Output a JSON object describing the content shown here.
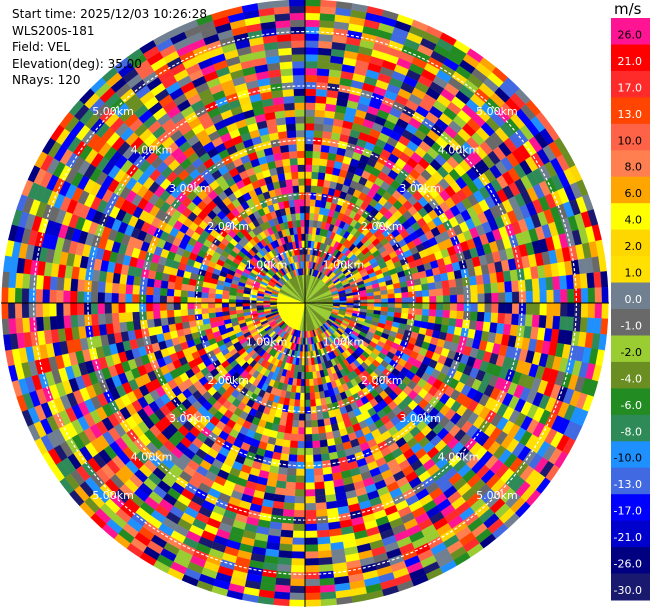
{
  "header": {
    "start_time": "Start time: 2025/12/03 10:26:28",
    "instrument": "WLS200s-181",
    "field": "Field: VEL",
    "elevation": "Elevation(deg): 35.00",
    "nrays": "NRays: 120"
  },
  "colorbar": {
    "unit": "m/s",
    "levels": [
      {
        "label": "26.0",
        "color": "#ff1493"
      },
      {
        "label": "21.0",
        "color": "#ff0000"
      },
      {
        "label": "17.0",
        "color": "#ff2b2b"
      },
      {
        "label": "13.0",
        "color": "#ff4500"
      },
      {
        "label": "10.0",
        "color": "#ff6347"
      },
      {
        "label": "8.0",
        "color": "#ff7f50"
      },
      {
        "label": "6.0",
        "color": "#ffa500"
      },
      {
        "label": "4.0",
        "color": "#ffff00"
      },
      {
        "label": "2.0",
        "color": "#ffd700"
      },
      {
        "label": "1.0",
        "color": "#ffe000"
      },
      {
        "label": "0.0",
        "color": "#708090"
      },
      {
        "label": "-1.0",
        "color": "#696969"
      },
      {
        "label": "-2.0",
        "color": "#9acd32"
      },
      {
        "label": "-4.0",
        "color": "#6b8e23"
      },
      {
        "label": "-6.0",
        "color": "#228b22"
      },
      {
        "label": "-8.0",
        "color": "#2e8b57"
      },
      {
        "label": "-10.0",
        "color": "#1e90ff"
      },
      {
        "label": "-13.0",
        "color": "#4169e1"
      },
      {
        "label": "-17.0",
        "color": "#0000ff"
      },
      {
        "label": "-21.0",
        "color": "#0000cd"
      },
      {
        "label": "-26.0",
        "color": "#000080"
      },
      {
        "label": "-30.0",
        "color": "#191970"
      }
    ]
  },
  "chart_data": {
    "type": "heatmap",
    "subtype": "polar-ppi",
    "field": "VEL",
    "unit": "m/s",
    "elevation_deg": 35.0,
    "nrays": 120,
    "range_rings": [
      {
        "label": "1.00km",
        "km": 1
      },
      {
        "label": "2.00km",
        "km": 2
      },
      {
        "label": "3.00km",
        "km": 3
      },
      {
        "label": "4.00km",
        "km": 4
      },
      {
        "label": "5.00km",
        "km": 5
      }
    ],
    "max_range_km": 5.6,
    "note_colors": {
      "ring_line": "#ffffff",
      "crosshair": "#000000"
    }
  }
}
